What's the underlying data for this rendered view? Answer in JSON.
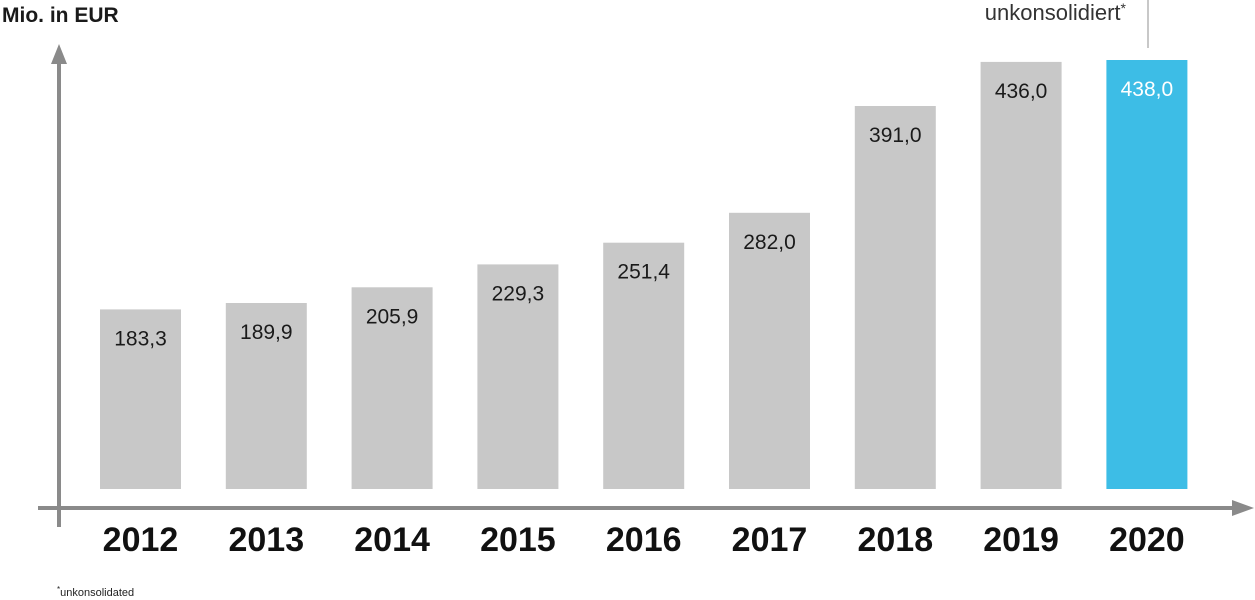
{
  "chart_data": {
    "type": "bar",
    "ylabel": "Mio. in EUR",
    "categories": [
      "2012",
      "2013",
      "2014",
      "2015",
      "2016",
      "2017",
      "2018",
      "2019",
      "2020"
    ],
    "values": [
      183.3,
      189.9,
      205.9,
      229.3,
      251.4,
      282.0,
      391.0,
      436.0,
      438.0
    ],
    "value_labels": [
      "183,3",
      "189,9",
      "205,9",
      "229,3",
      "251,4",
      "282,0",
      "391,0",
      "436,0",
      "438,0"
    ],
    "highlight_index": 8,
    "ylim": [
      0,
      440
    ],
    "grid": false,
    "colors": {
      "bar": "#c8c8c8",
      "highlight": "#3dbde6",
      "axis": "#8a8a8a"
    },
    "annotation": {
      "text": "unkonsolidiert",
      "mark": "*"
    },
    "footnote": {
      "mark": "*",
      "text": "unkonsolidated"
    }
  }
}
